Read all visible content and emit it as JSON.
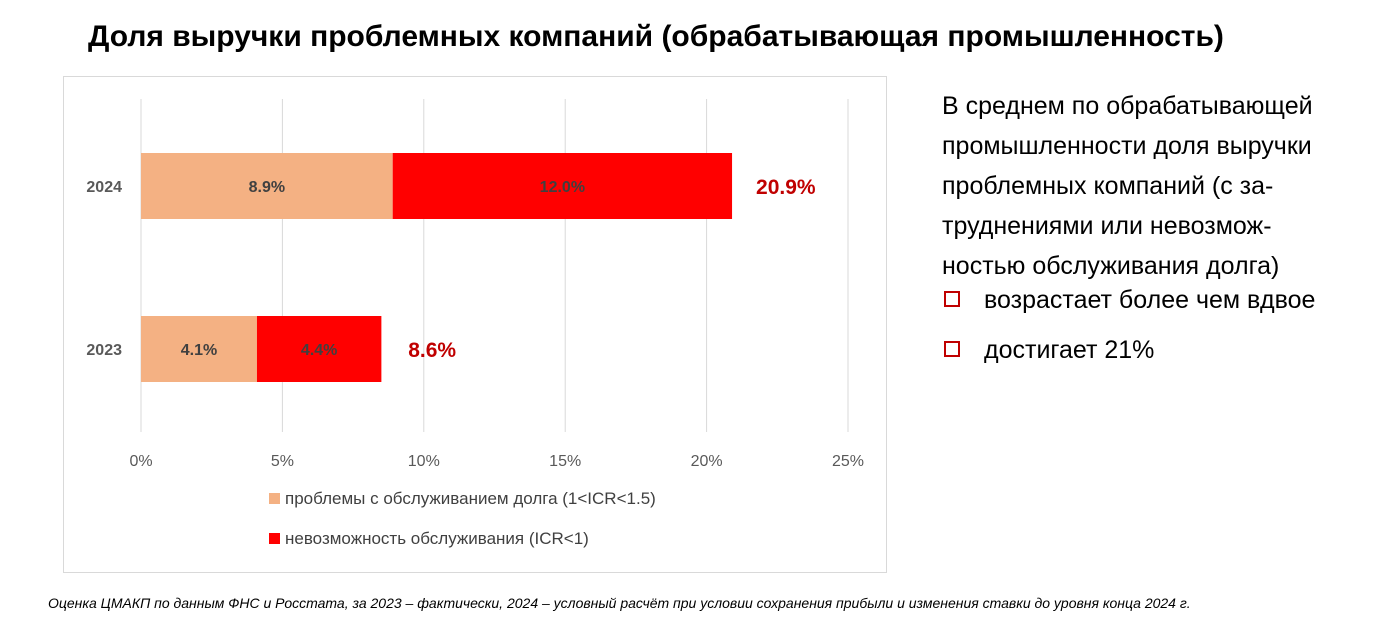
{
  "title": "Доля выручки проблемных компаний (обрабатывающая промышленность)",
  "chart_data": {
    "type": "bar",
    "orientation": "horizontal",
    "stacked": true,
    "categories": [
      "2024",
      "2023"
    ],
    "series": [
      {
        "name": "проблемы с обслуживанием долга (1<ICR<1.5)",
        "color": "#f4b183",
        "values": [
          8.9,
          4.1
        ],
        "labels": [
          "8.9%",
          "4.1%"
        ]
      },
      {
        "name": "невозможность обслуживания (ICR<1)",
        "color": "#ff0000",
        "values": [
          12.0,
          4.4
        ],
        "labels": [
          "12.0%",
          "4.4%"
        ]
      }
    ],
    "totals": [
      20.9,
      8.6
    ],
    "total_labels": [
      "20.9%",
      "8.6%"
    ],
    "total_color": "#c00000",
    "xlim": [
      0,
      25
    ],
    "xticks": [
      0,
      5,
      10,
      15,
      20,
      25
    ],
    "xtick_labels": [
      "0%",
      "5%",
      "10%",
      "15%",
      "20%",
      "25%"
    ],
    "grid": true,
    "legend_position": "bottom"
  },
  "side_text": {
    "lines": [
      "В среднем по обрабатывающей",
      "промышленности доля выручки",
      "проблемных компаний (с за-",
      "труднениями или невозмож-",
      "ностью обслуживания долга)"
    ],
    "bullets": [
      "возрастает более чем вдвое",
      "достигает 21%"
    ]
  },
  "footnote": "Оценка ЦМАКП по данным ФНС и Росстата, за 2023 – фактически, 2024 – условный расчёт при условии сохранения прибыли и изменения ставки до уровня конца 2024 г."
}
